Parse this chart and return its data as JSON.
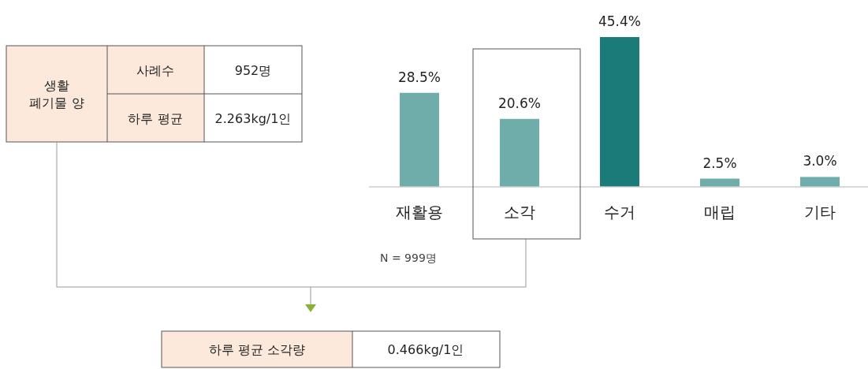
{
  "chart_data": [
    {
      "type": "bar",
      "categories": [
        "재활용",
        "소각",
        "수거",
        "매립",
        "기타"
      ],
      "values": [
        28.5,
        20.6,
        45.4,
        2.5,
        3.0
      ],
      "value_labels": [
        "28.5%",
        "20.6%",
        "45.4%",
        "2.5%",
        "3.0%"
      ],
      "colors": [
        "#6fadaa",
        "#6fadaa",
        "#1b7b78",
        "#6fadaa",
        "#6fadaa"
      ],
      "annotations": [
        "N = 999명"
      ]
    },
    {
      "type": "other",
      "annotations": [
        "생활\n폐기물 양",
        "사례수",
        "952명",
        "하루 평균",
        "2.263kg/1인"
      ]
    },
    {
      "type": "other",
      "annotations": [
        "하루 평균 소각량",
        "0.466kg/1인"
      ]
    }
  ]
}
